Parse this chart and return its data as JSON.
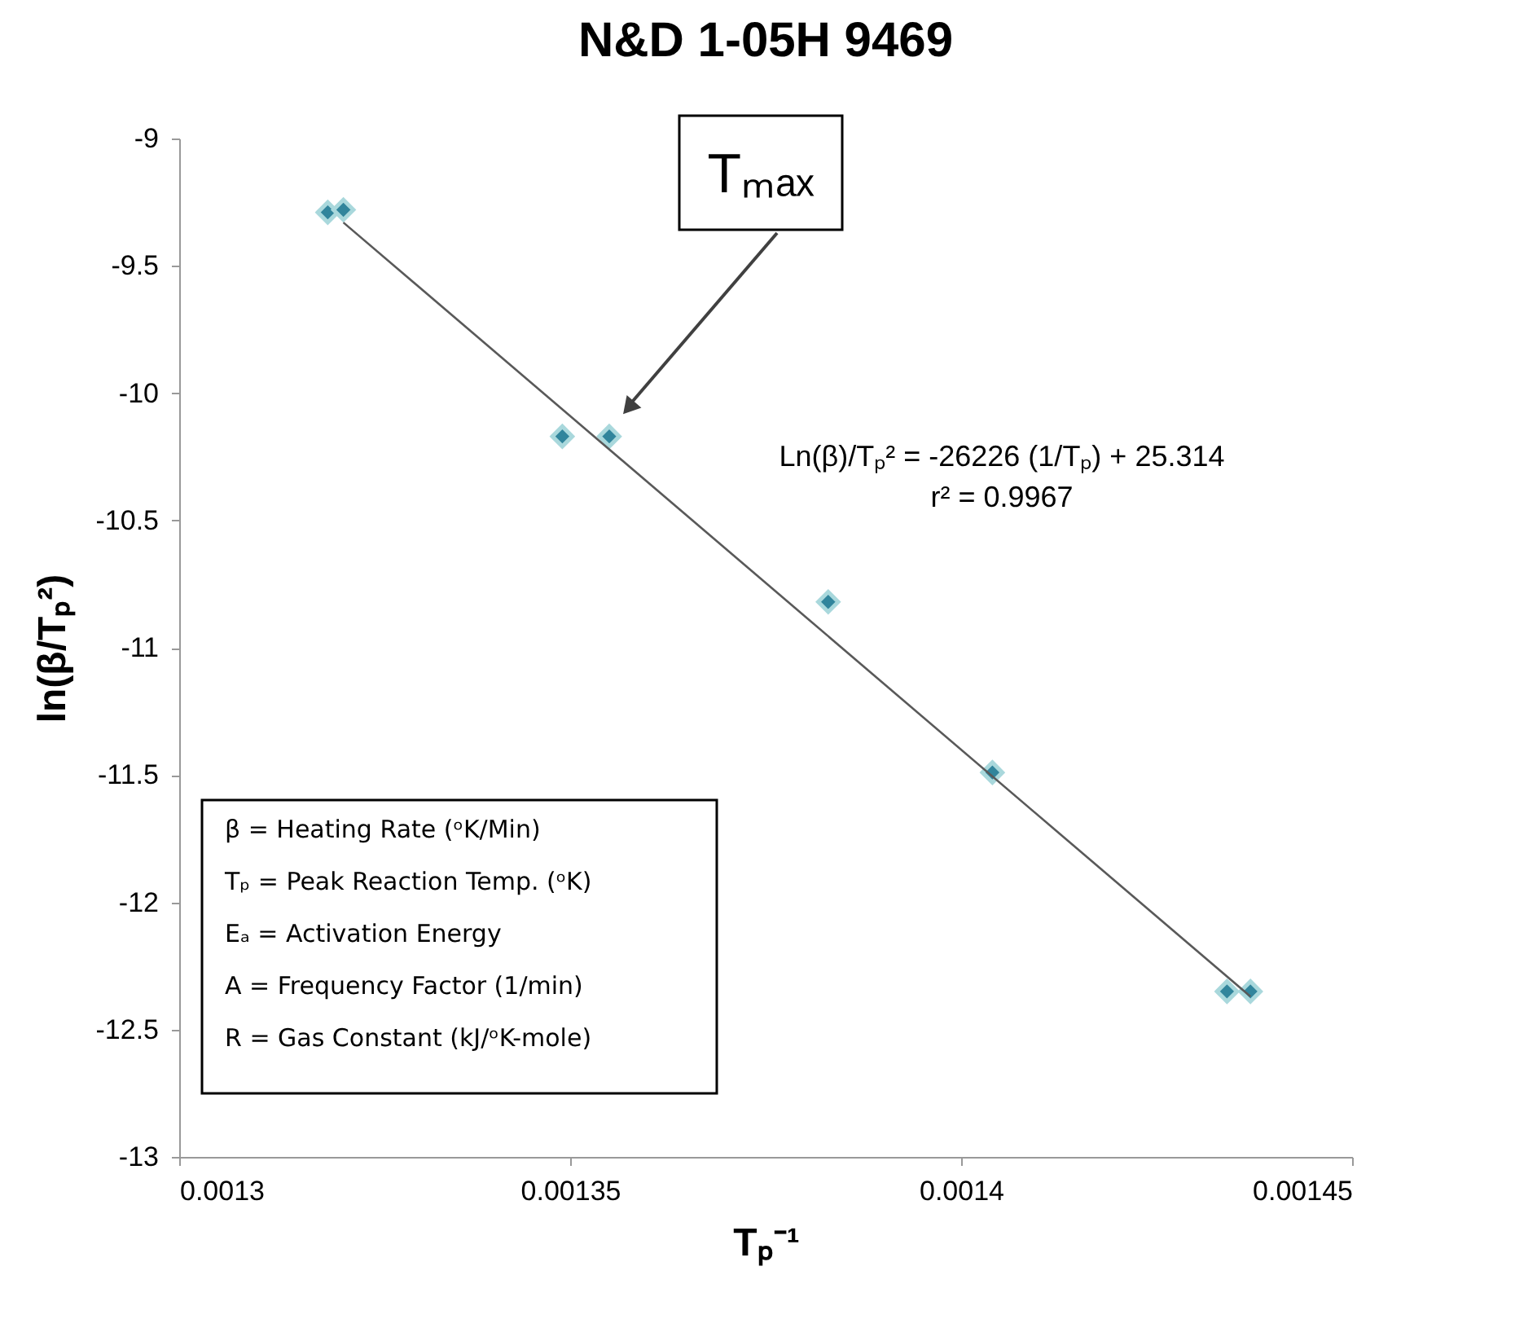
{
  "chart_data": {
    "type": "scatter",
    "title": "N&D 1-05H 9469",
    "xlabel": "Tₚ⁻¹",
    "ylabel": "ln(β/Tₚ²)",
    "series": [
      {
        "color": "#31859c",
        "x": [
          0.001319,
          0.001321,
          0.001349,
          0.001355,
          0.001383,
          0.001404,
          0.001434,
          0.001437
        ],
        "values": [
          -9.29,
          -9.28,
          -10.17,
          -10.17,
          -10.82,
          -11.49,
          -12.35,
          -12.35
        ]
      },
      {
        "type": "line",
        "marker": "none",
        "color": "#595959",
        "x": [
          0.001321,
          0.001437
        ],
        "values": [
          -9.33,
          -12.37
        ]
      }
    ],
    "marker": "diamond",
    "grid": false,
    "xlim": [
      0.0013,
      0.00145
    ],
    "xticks": [
      0.0013,
      0.00135,
      0.0014,
      0.00145
    ],
    "ylim": [
      -13,
      -9
    ],
    "yticks": [
      -13,
      -12.5,
      -12,
      -11.5,
      -11,
      -10.5,
      -10,
      -9.5,
      -9
    ],
    "annotations": [
      "Tₘₐₓ",
      "Ln(β)/Tₚ² = -26226 (1/Tₚ) + 25.314",
      "r² = 0.9967",
      "β = Heating Rate (ᵒK/Min)",
      "Tₚ = Peak Reaction Temp. (ᵒK)",
      "Eₐ = Activation Energy",
      "A = Frequency Factor (1/min)",
      "R = Gas Constant (kJ/ᵒK-mole)"
    ]
  }
}
